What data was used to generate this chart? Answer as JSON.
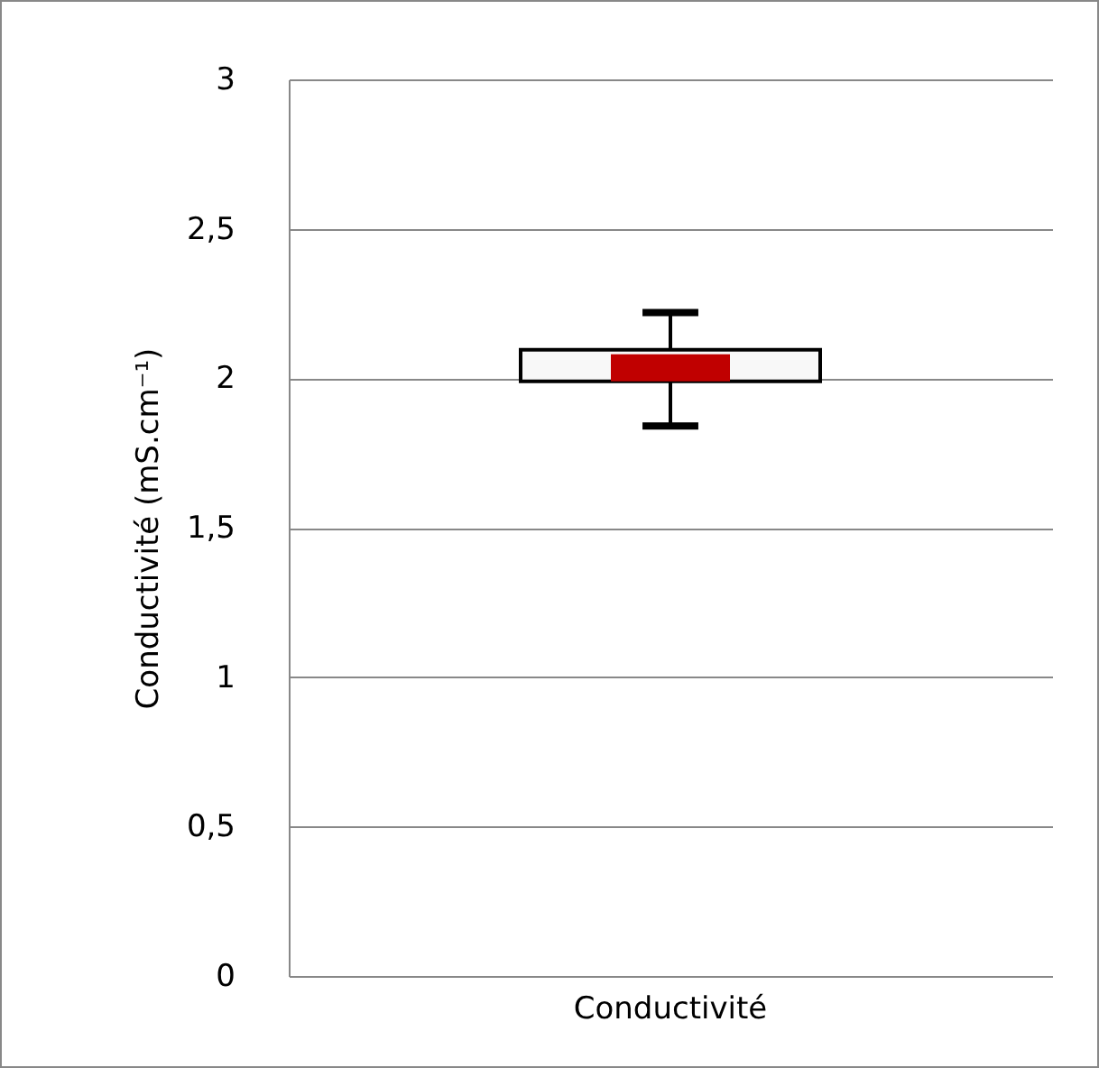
{
  "chart_data": {
    "type": "box",
    "ylabel": "Conductivité (mS.cm⁻¹)",
    "categories": [
      "Conductivité"
    ],
    "series": [
      {
        "color": "#f8f8f8",
        "boxes": [
          {
            "low": 1.84,
            "q1": 1.99,
            "median": 2.08,
            "q3": 2.095,
            "high": 2.22
          }
        ]
      }
    ],
    "ylim": [
      0,
      3
    ],
    "yticks": [
      0,
      {
        "value": 0.5,
        "label": "0,5"
      },
      1,
      {
        "value": 1.5,
        "label": "1,5"
      },
      2,
      {
        "value": 2.5,
        "label": "2,5"
      },
      3
    ],
    "grid": "y"
  }
}
